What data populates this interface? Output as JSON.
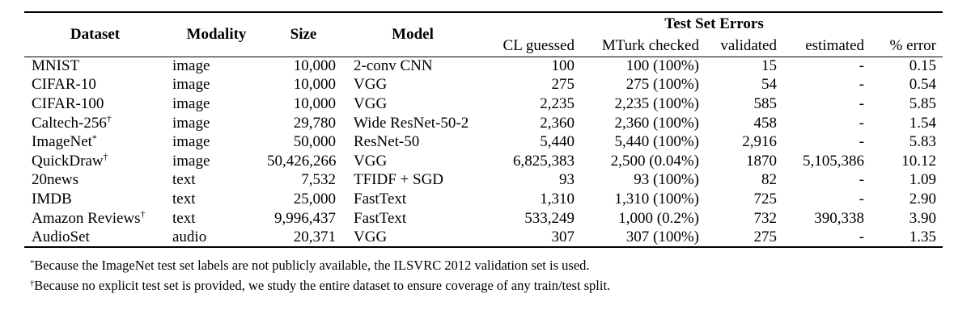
{
  "table": {
    "group_header": "Test Set Errors",
    "columns": {
      "dataset": "Dataset",
      "modality": "Modality",
      "size": "Size",
      "model": "Model",
      "cl_guessed": "CL guessed",
      "mturk_checked": "MTurk checked",
      "validated": "validated",
      "estimated": "estimated",
      "pct_error": "% error"
    },
    "rows": [
      {
        "dataset": "MNIST",
        "dataset_marker": "",
        "modality": "image",
        "size": "10,000",
        "model": "2-conv CNN",
        "cl_guessed": "100",
        "mturk_checked": "100 (100%)",
        "validated": "15",
        "estimated": "-",
        "pct_error": "0.15"
      },
      {
        "dataset": "CIFAR-10",
        "dataset_marker": "",
        "modality": "image",
        "size": "10,000",
        "model": "VGG",
        "cl_guessed": "275",
        "mturk_checked": "275 (100%)",
        "validated": "54",
        "estimated": "-",
        "pct_error": "0.54"
      },
      {
        "dataset": "CIFAR-100",
        "dataset_marker": "",
        "modality": "image",
        "size": "10,000",
        "model": "VGG",
        "cl_guessed": "2,235",
        "mturk_checked": "2,235 (100%)",
        "validated": "585",
        "estimated": "-",
        "pct_error": "5.85"
      },
      {
        "dataset": "Caltech-256",
        "dataset_marker": "†",
        "modality": "image",
        "size": "29,780",
        "model": "Wide ResNet-50-2",
        "cl_guessed": "2,360",
        "mturk_checked": "2,360 (100%)",
        "validated": "458",
        "estimated": "-",
        "pct_error": "1.54"
      },
      {
        "dataset": "ImageNet",
        "dataset_marker": "*",
        "modality": "image",
        "size": "50,000",
        "model": "ResNet-50",
        "cl_guessed": "5,440",
        "mturk_checked": "5,440 (100%)",
        "validated": "2,916",
        "estimated": "-",
        "pct_error": "5.83"
      },
      {
        "dataset": "QuickDraw",
        "dataset_marker": "†",
        "modality": "image",
        "size": "50,426,266",
        "model": "VGG",
        "cl_guessed": "6,825,383",
        "mturk_checked": "2,500 (0.04%)",
        "validated": "1870",
        "estimated": "5,105,386",
        "pct_error": "10.12"
      },
      {
        "dataset": "20news",
        "dataset_marker": "",
        "modality": "text",
        "size": "7,532",
        "model": "TFIDF + SGD",
        "cl_guessed": "93",
        "mturk_checked": "93 (100%)",
        "validated": "82",
        "estimated": "-",
        "pct_error": "1.09"
      },
      {
        "dataset": "IMDB",
        "dataset_marker": "",
        "modality": "text",
        "size": "25,000",
        "model": "FastText",
        "cl_guessed": "1,310",
        "mturk_checked": "1,310 (100%)",
        "validated": "725",
        "estimated": "-",
        "pct_error": "2.90"
      },
      {
        "dataset": "Amazon Reviews",
        "dataset_marker": "†",
        "modality": "text",
        "size": "9,996,437",
        "model": "FastText",
        "cl_guessed": "533,249",
        "mturk_checked": "1,000 (0.2%)",
        "validated": "732",
        "estimated": "390,338",
        "pct_error": "3.90"
      },
      {
        "dataset": "AudioSet",
        "dataset_marker": "",
        "modality": "audio",
        "size": "20,371",
        "model": "VGG",
        "cl_guessed": "307",
        "mturk_checked": "307 (100%)",
        "validated": "275",
        "estimated": "-",
        "pct_error": "1.35"
      }
    ]
  },
  "footnotes": [
    {
      "marker": "*",
      "text": "Because the ImageNet test set labels are not publicly available, the ILSVRC 2012 validation set is used."
    },
    {
      "marker": "†",
      "text": "Because no explicit test set is provided, we study the entire dataset to ensure coverage of any train/test split."
    }
  ]
}
